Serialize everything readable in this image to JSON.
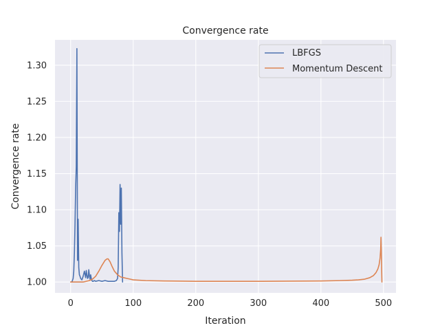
{
  "chart_data": {
    "type": "line",
    "title": "Convergence rate",
    "xlabel": "Iteration",
    "ylabel": "Convergence rate",
    "xlim": [
      -25,
      520
    ],
    "ylim": [
      0.985,
      1.335
    ],
    "xticks": [
      0,
      100,
      200,
      300,
      400,
      500
    ],
    "xtick_labels": [
      "0",
      "100",
      "200",
      "300",
      "400",
      "500"
    ],
    "yticks": [
      1.0,
      1.05,
      1.1,
      1.15,
      1.2,
      1.25,
      1.3
    ],
    "ytick_labels": [
      "1.00",
      "1.05",
      "1.10",
      "1.15",
      "1.20",
      "1.25",
      "1.30"
    ],
    "grid": true,
    "legend_position": "top-right",
    "series": [
      {
        "name": "LBFGS",
        "color": "#4c72b0",
        "x": [
          0,
          2,
          4,
          5,
          6,
          7,
          8,
          9,
          10,
          11,
          12,
          13,
          14,
          15,
          16,
          18,
          20,
          22,
          24,
          25,
          26,
          27,
          28,
          29,
          30,
          31,
          32,
          33,
          34,
          35,
          36,
          38,
          40,
          45,
          50,
          55,
          60,
          65,
          70,
          73,
          75,
          76,
          77,
          78,
          79,
          80,
          81,
          82,
          83
        ],
        "y": [
          1.0,
          1.0,
          1.005,
          1.015,
          1.04,
          1.08,
          1.13,
          1.16,
          1.323,
          1.03,
          1.087,
          1.02,
          1.01,
          1.008,
          1.005,
          1.003,
          1.008,
          1.015,
          1.006,
          1.016,
          1.01,
          1.005,
          1.006,
          1.017,
          1.009,
          1.004,
          1.01,
          1.005,
          1.002,
          1.001,
          1.001,
          1.002,
          1.001,
          1.002,
          1.001,
          1.002,
          1.001,
          1.001,
          1.001,
          1.002,
          1.005,
          1.02,
          1.096,
          1.07,
          1.135,
          1.08,
          1.13,
          1.04,
          1.0
        ]
      },
      {
        "name": "Momentum Descent",
        "color": "#dd8452",
        "x": [
          0,
          10,
          20,
          30,
          35,
          40,
          45,
          50,
          55,
          58,
          60,
          63,
          66,
          70,
          75,
          80,
          85,
          90,
          95,
          100,
          120,
          150,
          200,
          250,
          300,
          350,
          400,
          430,
          450,
          460,
          470,
          478,
          484,
          488,
          491,
          493,
          494.5,
          495.5,
          496,
          496.5,
          497,
          497.5
        ],
        "y": [
          1.0,
          1.0,
          1.0,
          1.002,
          1.004,
          1.008,
          1.015,
          1.023,
          1.03,
          1.032,
          1.032,
          1.028,
          1.022,
          1.015,
          1.01,
          1.007,
          1.006,
          1.005,
          1.004,
          1.003,
          1.002,
          1.0015,
          1.001,
          1.001,
          1.001,
          1.0012,
          1.0015,
          1.002,
          1.0025,
          1.003,
          1.004,
          1.006,
          1.009,
          1.013,
          1.018,
          1.024,
          1.033,
          1.045,
          1.062,
          1.045,
          1.02,
          1.0
        ]
      }
    ]
  }
}
